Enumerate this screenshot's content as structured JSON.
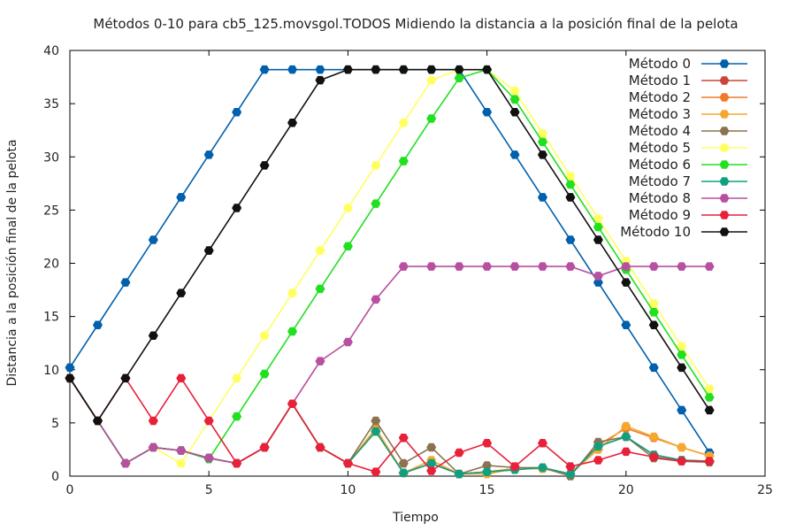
{
  "chart_data": {
    "type": "line",
    "title": "Métodos 0-10 para cb5_125.movsgol.TODOS Midiendo la distancia a la posición final de la pelota",
    "xlabel": "Tiempo",
    "ylabel": "Distancia a la posición final de la pelota",
    "xlim": [
      0,
      25
    ],
    "ylim": [
      0,
      40
    ],
    "xticks": [
      0,
      5,
      10,
      15,
      20,
      25
    ],
    "yticks": [
      0,
      5,
      10,
      15,
      20,
      25,
      30,
      35,
      40
    ],
    "grid": false,
    "legend_position": "top-right",
    "x": [
      0,
      1,
      2,
      3,
      4,
      5,
      6,
      7,
      8,
      9,
      10,
      11,
      12,
      13,
      14,
      15,
      16,
      17,
      18,
      19,
      20,
      21,
      22,
      23
    ],
    "series": [
      {
        "name": "Método 0",
        "color": "#0060ad",
        "values": [
          10.2,
          14.2,
          18.2,
          22.2,
          26.2,
          30.2,
          34.2,
          38.2,
          38.2,
          38.2,
          38.2,
          38.2,
          38.2,
          38.2,
          38.2,
          34.2,
          30.2,
          26.2,
          22.2,
          18.2,
          14.2,
          10.2,
          6.2,
          2.2
        ]
      },
      {
        "name": "Método 1",
        "color": "#c8463c",
        "values": [
          9.2,
          5.2,
          1.2,
          2.7,
          2.4,
          1.7,
          1.2,
          2.7,
          6.8,
          2.7,
          1.2,
          4.2,
          0.3,
          1.2,
          0.2,
          0.4,
          0.6,
          0.8,
          0.2,
          2.8,
          3.7,
          2.0,
          1.5,
          1.4
        ]
      },
      {
        "name": "Método 2",
        "color": "#f07a28",
        "values": [
          9.2,
          5.2,
          1.2,
          2.7,
          2.4,
          1.7,
          1.2,
          2.7,
          6.8,
          2.7,
          1.2,
          4.2,
          0.3,
          1.2,
          0.2,
          0.4,
          0.7,
          0.7,
          0.2,
          2.9,
          4.5,
          3.6,
          2.7,
          1.9
        ]
      },
      {
        "name": "Método 3",
        "color": "#f5a830",
        "values": [
          9.2,
          5.2,
          1.2,
          2.7,
          2.4,
          1.7,
          1.2,
          2.7,
          6.8,
          2.7,
          1.2,
          4.5,
          0.3,
          1.5,
          0.2,
          0.2,
          0.7,
          0.7,
          0.2,
          2.5,
          4.7,
          3.7,
          2.7,
          1.9
        ]
      },
      {
        "name": "Método 4",
        "color": "#8c7250",
        "values": [
          9.2,
          5.2,
          1.2,
          2.7,
          2.4,
          1.7,
          1.2,
          2.7,
          6.8,
          2.7,
          1.2,
          5.2,
          1.2,
          2.7,
          0.2,
          1.0,
          0.8,
          0.8,
          0.0,
          3.2,
          3.7,
          1.7,
          1.4,
          1.3
        ]
      },
      {
        "name": "Método 5",
        "color": "#ffff60",
        "values": [
          9.2,
          5.2,
          1.2,
          2.7,
          1.2,
          5.2,
          9.2,
          13.2,
          17.2,
          21.2,
          25.2,
          29.2,
          33.2,
          37.2,
          38.2,
          38.2,
          36.2,
          32.2,
          28.2,
          24.2,
          20.2,
          16.2,
          12.2,
          8.2
        ]
      },
      {
        "name": "Método 6",
        "color": "#20e020",
        "values": [
          9.2,
          5.2,
          1.2,
          2.7,
          2.4,
          1.6,
          5.6,
          9.6,
          13.6,
          17.6,
          21.6,
          25.6,
          29.6,
          33.6,
          37.4,
          38.2,
          35.4,
          31.4,
          27.4,
          23.4,
          19.4,
          15.4,
          11.4,
          7.4
        ]
      },
      {
        "name": "Método 7",
        "color": "#10a080",
        "values": [
          9.2,
          5.2,
          1.2,
          2.7,
          2.4,
          1.7,
          1.2,
          2.7,
          6.8,
          2.7,
          1.2,
          4.2,
          0.3,
          1.2,
          0.2,
          0.4,
          0.6,
          0.8,
          0.2,
          2.8,
          3.7,
          2.0,
          1.5,
          1.4
        ]
      },
      {
        "name": "Método 8",
        "color": "#b84fa0",
        "values": [
          9.2,
          5.2,
          1.2,
          2.7,
          2.4,
          1.7,
          1.2,
          2.7,
          6.8,
          10.8,
          12.6,
          16.6,
          19.7,
          19.7,
          19.7,
          19.7,
          19.7,
          19.7,
          19.7,
          18.8,
          19.7,
          19.7,
          19.7,
          19.7
        ]
      },
      {
        "name": "Método 9",
        "color": "#e8203a",
        "values": [
          9.2,
          5.2,
          9.2,
          5.2,
          9.2,
          5.2,
          1.2,
          2.7,
          6.8,
          2.7,
          1.2,
          0.4,
          3.6,
          0.5,
          2.2,
          3.1,
          0.9,
          3.1,
          0.9,
          1.5,
          2.3,
          1.8,
          1.4,
          1.4
        ]
      },
      {
        "name": "Método 10",
        "color": "#111111",
        "values": [
          9.2,
          5.2,
          9.2,
          13.2,
          17.2,
          21.2,
          25.2,
          29.2,
          33.2,
          37.2,
          38.2,
          38.2,
          38.2,
          38.2,
          38.2,
          38.2,
          34.2,
          30.2,
          26.2,
          22.2,
          18.2,
          14.2,
          10.2,
          6.2
        ]
      }
    ]
  }
}
